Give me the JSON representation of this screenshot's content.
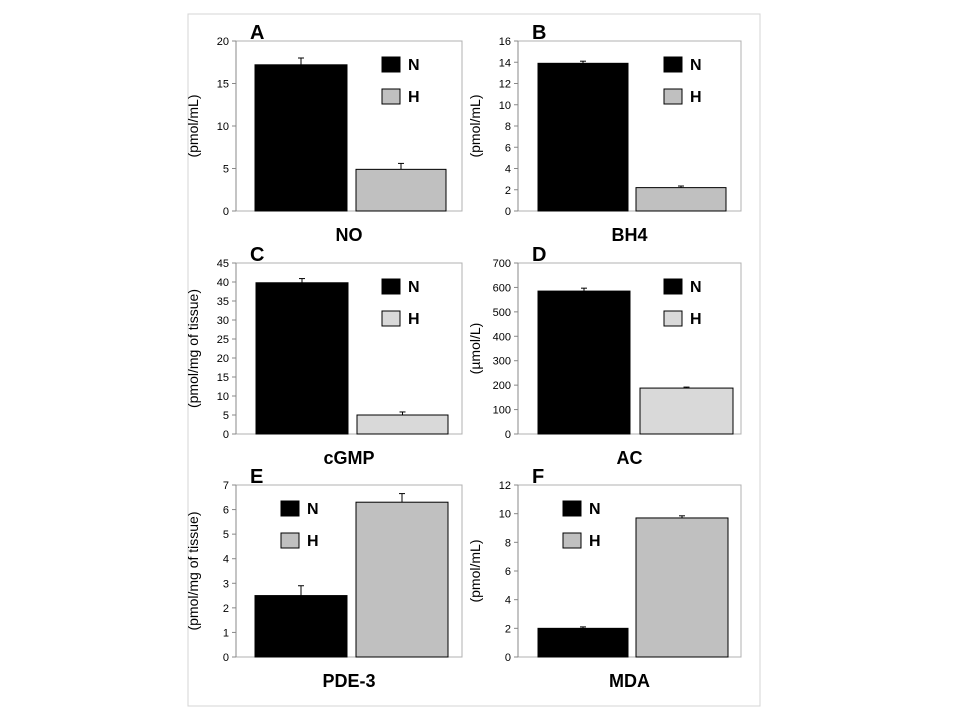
{
  "chart_data": [
    {
      "panel": "A",
      "type": "bar",
      "categories": [
        "N",
        "H"
      ],
      "values": [
        17.2,
        4.9
      ],
      "errors": [
        0.8,
        0.7
      ],
      "colors": [
        "#000000",
        "#c0c0c0"
      ],
      "xlabel": "NO",
      "ylabel": "(pmol/mL)",
      "ylim": [
        0,
        20
      ],
      "yticks": [
        0,
        5,
        10,
        15,
        20
      ],
      "legend": [
        {
          "name": "N",
          "color": "#000000"
        },
        {
          "name": "H",
          "color": "#c0c0c0"
        }
      ],
      "legend_position": "top-right"
    },
    {
      "panel": "B",
      "type": "bar",
      "categories": [
        "N",
        "H"
      ],
      "values": [
        13.9,
        2.2
      ],
      "errors": [
        0.2,
        0.15
      ],
      "colors": [
        "#000000",
        "#c0c0c0"
      ],
      "xlabel": "BH4",
      "ylabel": "(pmol/mL)",
      "ylim": [
        0,
        16
      ],
      "yticks": [
        0,
        2,
        4,
        6,
        8,
        10,
        12,
        14,
        16
      ],
      "legend": [
        {
          "name": "N",
          "color": "#000000"
        },
        {
          "name": "H",
          "color": "#c0c0c0"
        }
      ],
      "legend_position": "top-right"
    },
    {
      "panel": "C",
      "type": "bar",
      "categories": [
        "N",
        "H"
      ],
      "values": [
        39.8,
        5.0
      ],
      "errors": [
        1.1,
        0.8
      ],
      "colors": [
        "#000000",
        "#d9d9d9"
      ],
      "xlabel": "cGMP",
      "ylabel": "(pmol/mg of tissue)",
      "ylim": [
        0,
        45
      ],
      "yticks": [
        0,
        5,
        10,
        15,
        20,
        25,
        30,
        35,
        40,
        45
      ],
      "legend": [
        {
          "name": "N",
          "color": "#000000"
        },
        {
          "name": "H",
          "color": "#d9d9d9"
        }
      ],
      "legend_position": "top-right"
    },
    {
      "panel": "D",
      "type": "bar",
      "categories": [
        "N",
        "H"
      ],
      "values": [
        585,
        188
      ],
      "errors": [
        12,
        4
      ],
      "colors": [
        "#000000",
        "#d9d9d9"
      ],
      "xlabel": "AC",
      "ylabel": "(µmol/L)",
      "ylim": [
        0,
        700
      ],
      "yticks": [
        0,
        100,
        200,
        300,
        400,
        500,
        600,
        700
      ],
      "legend": [
        {
          "name": "N",
          "color": "#000000"
        },
        {
          "name": "H",
          "color": "#d9d9d9"
        }
      ],
      "legend_position": "top-right"
    },
    {
      "panel": "E",
      "type": "bar",
      "categories": [
        "N",
        "H"
      ],
      "values": [
        2.5,
        6.3
      ],
      "errors": [
        0.4,
        0.35
      ],
      "colors": [
        "#000000",
        "#c0c0c0"
      ],
      "xlabel": "PDE-3",
      "ylabel": "(pmol/mg of tissue)",
      "ylim": [
        0,
        7
      ],
      "yticks": [
        0,
        1,
        2,
        3,
        4,
        5,
        6,
        7
      ],
      "legend": [
        {
          "name": "N",
          "color": "#000000"
        },
        {
          "name": "H",
          "color": "#c0c0c0"
        }
      ],
      "legend_position": "top-left"
    },
    {
      "panel": "F",
      "type": "bar",
      "categories": [
        "N",
        "H"
      ],
      "values": [
        2.0,
        9.7
      ],
      "errors": [
        0.1,
        0.15
      ],
      "colors": [
        "#000000",
        "#c0c0c0"
      ],
      "xlabel": "MDA",
      "ylabel": "(pmol/mL)",
      "ylim": [
        0,
        12
      ],
      "yticks": [
        0,
        2,
        4,
        6,
        8,
        10,
        12
      ],
      "legend": [
        {
          "name": "N",
          "color": "#000000"
        },
        {
          "name": "H",
          "color": "#c0c0c0"
        }
      ],
      "legend_position": "top-left"
    }
  ]
}
